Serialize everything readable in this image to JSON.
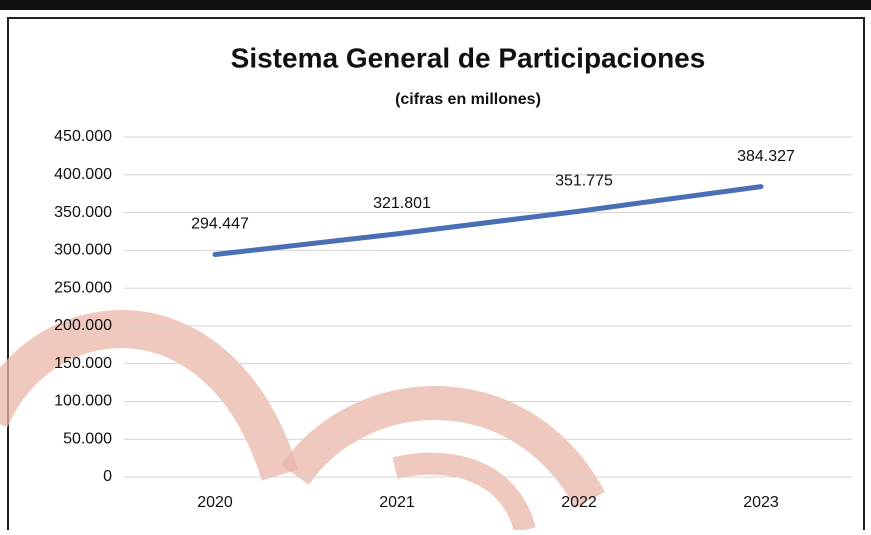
{
  "chart_data": {
    "type": "line",
    "title": "Sistema General de Participaciones",
    "subtitle": "(cifras en millones)",
    "categories": [
      "2020",
      "2021",
      "2022",
      "2023"
    ],
    "series": [
      {
        "name": "Sistema General de Participaciones",
        "color": "#4a6fb5",
        "values": [
          294447,
          321801,
          351775,
          384327
        ],
        "value_labels": [
          "294.447",
          "321.801",
          "351.775",
          "384.327"
        ]
      }
    ],
    "ylim": [
      0,
      450000
    ],
    "yticks": [
      {
        "value": 0,
        "label": "0"
      },
      {
        "value": 50000,
        "label": "50.000"
      },
      {
        "value": 100000,
        "label": "100.000"
      },
      {
        "value": 150000,
        "label": "150.000"
      },
      {
        "value": 200000,
        "label": "200.000"
      },
      {
        "value": 250000,
        "label": "250.000"
      },
      {
        "value": 300000,
        "label": "300.000"
      },
      {
        "value": 350000,
        "label": "350.000"
      },
      {
        "value": 400000,
        "label": "400.000"
      },
      {
        "value": 450000,
        "label": "450.000"
      }
    ],
    "grid": true
  }
}
